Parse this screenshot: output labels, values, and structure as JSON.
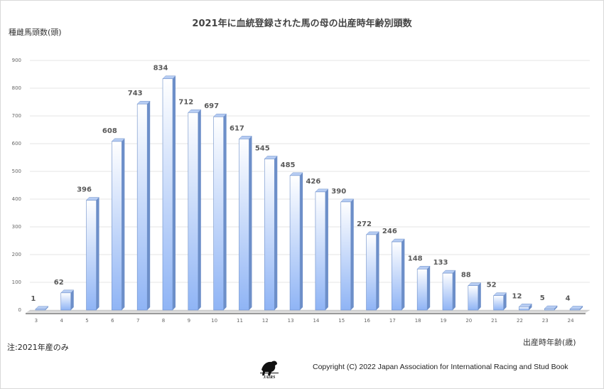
{
  "chart_data": {
    "type": "bar",
    "title": "2021年に血統登録された馬の母の出産時年齢別頭数",
    "ylabel": "種雌馬頭数(頭)",
    "xlabel": "出産時年齢(歳)",
    "categories": [
      "3",
      "4",
      "5",
      "6",
      "7",
      "8",
      "9",
      "10",
      "11",
      "12",
      "13",
      "14",
      "15",
      "16",
      "17",
      "18",
      "19",
      "20",
      "21",
      "22",
      "23",
      "24"
    ],
    "values": [
      1,
      62,
      396,
      608,
      743,
      834,
      712,
      697,
      617,
      545,
      485,
      426,
      390,
      272,
      246,
      148,
      133,
      88,
      52,
      12,
      5,
      4
    ],
    "ylim": [
      0,
      900
    ],
    "yticks": [
      "0",
      "100",
      "200",
      "300",
      "400",
      "500",
      "600",
      "700",
      "800",
      "900"
    ],
    "grid": true,
    "legend": "none",
    "bar_gradient": [
      "#ffffff",
      "#8fb4f5"
    ],
    "bar_side_color": "#6d8fc9"
  },
  "note": "注:2021年産のみ",
  "copyright": "Copyright (C) 2022 Japan Association for International Racing and Stud Book",
  "logo_text": "JAIRS"
}
